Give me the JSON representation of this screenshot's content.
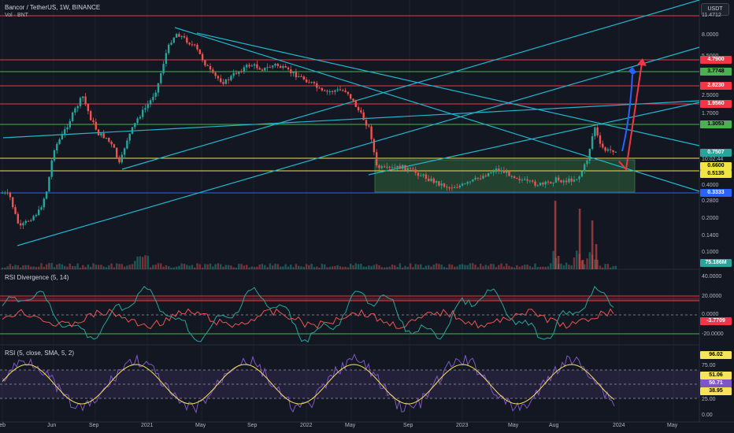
{
  "header": {
    "title": "Bancor / TetherUS, 1W, BINANCE",
    "volume_label": "Vol · BNT",
    "currency": "USDT"
  },
  "colors": {
    "bg": "#131722",
    "up": "#26a69a",
    "down": "#ef5350",
    "cyan": "#22b5cc",
    "red": "#f23645",
    "green": "#4caf50",
    "yellow": "#f0e442",
    "blue": "#2962ff",
    "rsi_line": "#7e57c2",
    "rsi_ma": "#f7e35b"
  },
  "price_axis": [
    "11.4712",
    "8.0000",
    "5.5000",
    "3.7748",
    "2.8230",
    "2.5000",
    "1.9560",
    "1.7000",
    "1.3053",
    "0.7507",
    "10:02:44",
    "0.6600",
    "0.5135",
    "0.4000",
    "0.3333",
    "0.2800",
    "0.2000",
    "0.1400",
    "0.1000",
    "75.186M"
  ],
  "price_badges": [
    {
      "text": "4.7900",
      "bg": "#f23645",
      "fg": "#ffffff"
    },
    {
      "text": "3.7748",
      "bg": "#4caf50",
      "fg": "#000000"
    },
    {
      "text": "2.8230",
      "bg": "#f23645",
      "fg": "#ffffff"
    },
    {
      "text": "1.9560",
      "bg": "#f23645",
      "fg": "#ffffff"
    },
    {
      "text": "1.3053",
      "bg": "#4caf50",
      "fg": "#000000"
    },
    {
      "text": "0.7507",
      "bg": "#26a69a",
      "fg": "#ffffff"
    },
    {
      "text": "0.6600",
      "bg": "#f0e442",
      "fg": "#000000"
    },
    {
      "text": "0.5135",
      "bg": "#f0e442",
      "fg": "#000000"
    },
    {
      "text": "0.3333",
      "bg": "#2962ff",
      "fg": "#ffffff"
    },
    {
      "text": "75.186M",
      "bg": "#26a69a",
      "fg": "#ffffff"
    }
  ],
  "rsi_div": {
    "title": "RSI Divergence (5, 14)",
    "axis": [
      "40.0000",
      "20.0000",
      "0.0000",
      "-20.0000"
    ],
    "value": "-3.7709"
  },
  "rsi": {
    "title": "RSI (5, close, SMA, 5, 2)",
    "axis": [
      "96.02",
      "75.00",
      "51.06",
      "50.71",
      "38.95",
      "25.00",
      "0.00"
    ]
  },
  "x_axis": [
    "Feb",
    "Jun",
    "Sep",
    "2021",
    "May",
    "Sep",
    "2022",
    "May",
    "Sep",
    "2023",
    "May",
    "Aug",
    "2024",
    "May"
  ]
}
